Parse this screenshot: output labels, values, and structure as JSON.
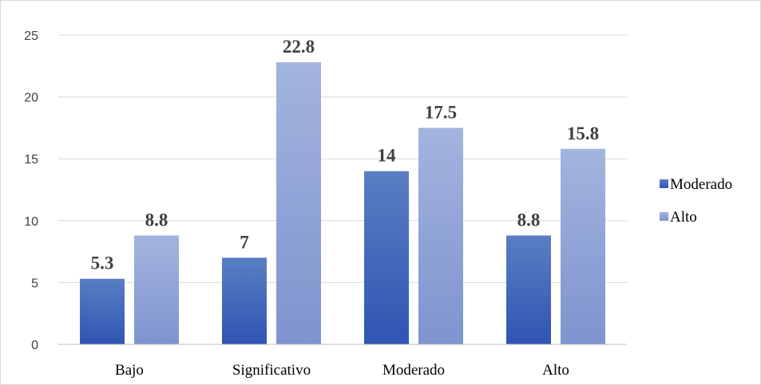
{
  "chart_data": {
    "type": "bar",
    "categories": [
      "Bajo",
      "Significativo",
      "Moderado",
      "Alto"
    ],
    "series": [
      {
        "name": "Moderado",
        "values": [
          5.3,
          7,
          14,
          8.8
        ],
        "labels": [
          "5.3",
          "7",
          "14",
          "8.8"
        ],
        "color_top": "#5a7ec2",
        "color_bottom": "#2f55b3"
      },
      {
        "name": "Alto",
        "values": [
          8.8,
          22.8,
          17.5,
          15.8
        ],
        "labels": [
          "8.8",
          "22.8",
          "17.5",
          "15.8"
        ],
        "color_top": "#a2b4de",
        "color_bottom": "#7f93cf"
      }
    ],
    "ylim": [
      0,
      25
    ],
    "yticks": [
      0,
      5,
      10,
      15,
      20,
      25
    ],
    "ytick_labels": [
      "0",
      "5",
      "10",
      "15",
      "20",
      "25"
    ],
    "grid": true,
    "legend_position": "right",
    "title": "",
    "xlabel": "",
    "ylabel": ""
  }
}
